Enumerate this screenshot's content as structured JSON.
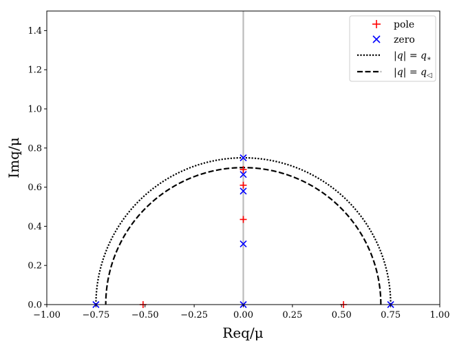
{
  "chart_data": {
    "type": "scatter",
    "xlabel": "Req/μ",
    "ylabel": "Imq/μ",
    "xlim": [
      -1.0,
      1.0
    ],
    "ylim": [
      0.0,
      1.5
    ],
    "x_ticks": [
      -1.0,
      -0.75,
      -0.5,
      -0.25,
      0.0,
      0.25,
      0.5,
      0.75,
      1.0
    ],
    "x_tick_labels": [
      "−1.00",
      "−0.75",
      "−0.50",
      "−0.25",
      "0.00",
      "0.25",
      "0.50",
      "0.75",
      "1.00"
    ],
    "y_ticks": [
      0.0,
      0.2,
      0.4,
      0.6,
      0.8,
      1.0,
      1.2,
      1.4
    ],
    "y_tick_labels": [
      "0.0",
      "0.2",
      "0.4",
      "0.6",
      "0.8",
      "1.0",
      "1.2",
      "1.4"
    ],
    "grid": false,
    "legend_position": "top-right",
    "vertical_line": {
      "x": 0.0,
      "color": "#bbbbbb"
    },
    "series": [
      {
        "name": "pole",
        "marker": "+",
        "color": "#ff0000",
        "points": [
          [
            -0.51,
            0.0
          ],
          [
            0.51,
            0.0
          ],
          [
            0.0,
            0.435
          ],
          [
            0.0,
            0.61
          ],
          [
            0.0,
            0.69
          ]
        ]
      },
      {
        "name": "zero",
        "marker": "x",
        "color": "#0000ff",
        "points": [
          [
            -0.75,
            0.0
          ],
          [
            0.0,
            0.0
          ],
          [
            0.75,
            0.0
          ],
          [
            0.0,
            0.31
          ],
          [
            0.0,
            0.58
          ],
          [
            0.0,
            0.665
          ],
          [
            0.0,
            0.75
          ]
        ]
      },
      {
        "name": "|q| = q_*",
        "style": "dotted",
        "color": "#000000",
        "radius": 0.75
      },
      {
        "name": "|q| = q_◁",
        "style": "dashed",
        "color": "#000000",
        "radius": 0.7
      }
    ]
  }
}
